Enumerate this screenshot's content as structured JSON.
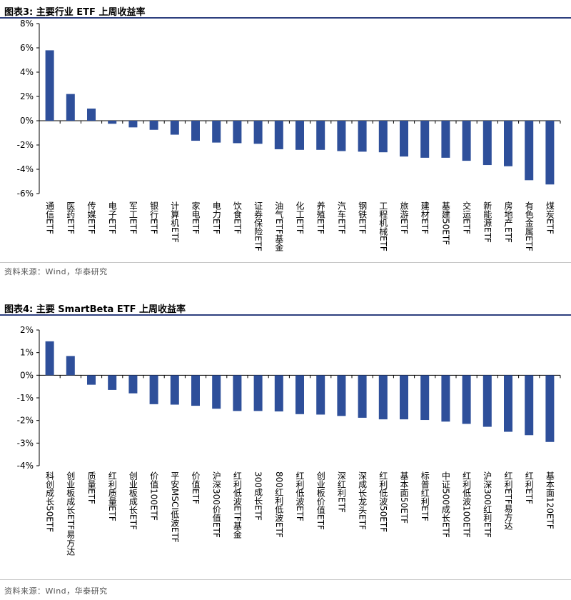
{
  "figure1": {
    "title": "图表3:  主要行业 ETF 上周收益率",
    "source": "资料来源：Wind，华泰研究"
  },
  "figure2": {
    "title": "图表4:  主要 SmartBeta ETF 上周收益率",
    "source": "资料来源：Wind，华泰研究"
  },
  "colors": {
    "bar": "#2e4f9a",
    "title_rule": "#2d3f7e"
  },
  "chart_data": [
    {
      "type": "bar",
      "title": "主要行业 ETF 上周收益率",
      "ylim": [
        -6,
        8
      ],
      "yticks": [
        "8%",
        "6%",
        "4%",
        "2%",
        "0%",
        "-2%",
        "-4%",
        "-6%"
      ],
      "categories": [
        "通信ETF",
        "医药ETF",
        "传媒ETF",
        "电子ETF",
        "军工ETF",
        "银行ETF",
        "计算机ETF",
        "家电ETF",
        "电力ETF",
        "饮食ETF",
        "证券保险ETF",
        "油气ETF基金",
        "化工ETF",
        "养殖ETF",
        "汽车ETF",
        "钢铁ETF",
        "工程机械ETF",
        "旅游ETF",
        "建材ETF",
        "基建50ETF",
        "交运ETF",
        "新能源ETF",
        "房地产ETF",
        "有色金属ETF",
        "煤炭ETF"
      ],
      "values": [
        5.8,
        2.2,
        1.0,
        -0.25,
        -0.55,
        -0.75,
        -1.15,
        -1.65,
        -1.8,
        -1.85,
        -1.9,
        -2.35,
        -2.4,
        -2.4,
        -2.5,
        -2.55,
        -2.6,
        -2.95,
        -3.05,
        -3.05,
        -3.3,
        -3.65,
        -3.75,
        -4.9,
        -5.25
      ],
      "grid": false
    },
    {
      "type": "bar",
      "title": "主要 SmartBeta ETF 上周收益率",
      "ylim": [
        -4,
        2
      ],
      "yticks": [
        "2%",
        "1%",
        "0%",
        "-1%",
        "-2%",
        "-3%",
        "-4%"
      ],
      "categories": [
        "科创成长50ETF",
        "创业板成长ETF易方达",
        "质量ETF",
        "红利质量ETF",
        "创业板成长ETF",
        "价值100ETF",
        "平安MSCI低波ETF",
        "价值ETF",
        "沪深300价值ETF",
        "红利低波ETF基金",
        "300成长ETF",
        "800红利低波ETF",
        "红利低波ETF",
        "创业板价值ETF",
        "深红利ETF",
        "深成长龙头ETF",
        "红利低波50ETF",
        "基本面50ETF",
        "标普红利ETF",
        "中证500成长ETF",
        "红利低波100ETF",
        "沪深300红利ETF",
        "红利ETF易方达",
        "红利ETF",
        "基本面120ETF"
      ],
      "values": [
        1.5,
        0.85,
        -0.42,
        -0.65,
        -0.8,
        -1.28,
        -1.3,
        -1.35,
        -1.48,
        -1.58,
        -1.58,
        -1.6,
        -1.72,
        -1.74,
        -1.8,
        -1.88,
        -1.95,
        -1.95,
        -1.98,
        -2.05,
        -2.15,
        -2.28,
        -2.5,
        -2.65,
        -2.95
      ],
      "grid": false
    }
  ]
}
